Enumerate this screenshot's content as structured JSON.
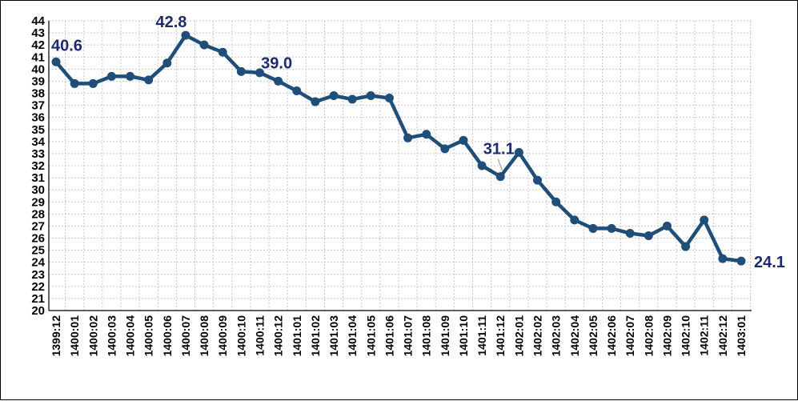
{
  "chart_data": {
    "type": "line",
    "title": "",
    "xlabel": "",
    "ylabel": "",
    "ylim": [
      20,
      44
    ],
    "y_step": 1,
    "grid": true,
    "legend": "none",
    "line_color": "#1F4E79",
    "label_color": "#1F2A6B",
    "categories": [
      "1399:12",
      "1400:01",
      "1400:02",
      "1400:03",
      "1400:04",
      "1400:05",
      "1400:06",
      "1400:07",
      "1400:08",
      "1400:09",
      "1400:10",
      "1400:11",
      "1400:12",
      "1401:01",
      "1401:02",
      "1401:03",
      "1401:04",
      "1401:05",
      "1401:06",
      "1401:07",
      "1401:08",
      "1401:09",
      "1401:10",
      "1401:11",
      "1401:12",
      "1402:01",
      "1402:02",
      "1402:03",
      "1402:04",
      "1402:05",
      "1402:06",
      "1402:07",
      "1402:08",
      "1402:09",
      "1402:10",
      "1402:11",
      "1402:12",
      "1403:01"
    ],
    "series": [
      {
        "values": [
          40.6,
          38.8,
          38.8,
          39.4,
          39.4,
          39.1,
          40.5,
          42.8,
          42.0,
          41.4,
          39.8,
          39.7,
          39.0,
          38.2,
          37.3,
          37.8,
          37.5,
          37.8,
          37.6,
          34.3,
          34.6,
          33.4,
          34.1,
          32.0,
          31.1,
          33.1,
          30.8,
          29.0,
          27.5,
          26.8,
          26.8,
          26.4,
          26.2,
          27.0,
          25.3,
          27.5,
          24.3,
          24.1
        ]
      }
    ],
    "data_labels": [
      {
        "index": 0,
        "text": "40.6"
      },
      {
        "index": 7,
        "text": "42.8"
      },
      {
        "index": 12,
        "text": "39.0"
      },
      {
        "index": 24,
        "text": "31.1"
      },
      {
        "index": 37,
        "text": "24.1"
      }
    ]
  }
}
